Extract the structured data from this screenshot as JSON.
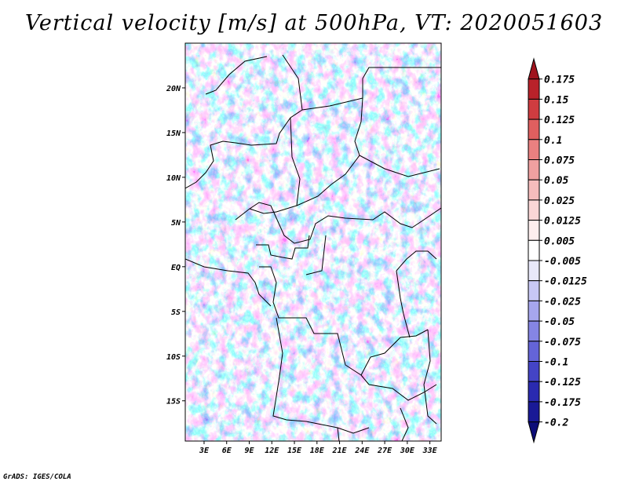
{
  "chart_data": {
    "type": "heatmap",
    "title": "Vertical velocity [m/s] at 500hPa, VT: 2020051603",
    "x_ticks": [
      "3E",
      "6E",
      "9E",
      "12E",
      "15E",
      "18E",
      "21E",
      "24E",
      "27E",
      "30E",
      "33E"
    ],
    "x_values": [
      3,
      6,
      9,
      12,
      15,
      18,
      21,
      24,
      27,
      30,
      33
    ],
    "y_ticks": [
      "20N",
      "15N",
      "10N",
      "5N",
      "EQ",
      "5S",
      "10S",
      "15S"
    ],
    "y_values": [
      20,
      15,
      10,
      5,
      0,
      -5,
      -10,
      -15
    ],
    "xlim": [
      0.5,
      34.5
    ],
    "ylim": [
      -19.5,
      25
    ],
    "colorbar": {
      "levels": [
        "0.175",
        "0.15",
        "0.125",
        "0.1",
        "0.075",
        "0.05",
        "0.025",
        "0.0125",
        "0.005",
        "-0.005",
        "-0.0125",
        "-0.025",
        "-0.05",
        "-0.075",
        "-0.1",
        "-0.125",
        "-0.175",
        "-0.2"
      ],
      "colors": [
        "#a0141e",
        "#b9222a",
        "#cf3c40",
        "#e05f5f",
        "#ea8080",
        "#f0a0a0",
        "#f5bcbc",
        "#fad6d6",
        "#fdeeee",
        "#ffffff",
        "#e8e8fa",
        "#c8c8f5",
        "#a6a6ee",
        "#8585e4",
        "#6464d8",
        "#4444c6",
        "#2a2ab0",
        "#191996",
        "#0d0d78"
      ]
    }
  },
  "credit": "GrADS: IGES/COLA"
}
